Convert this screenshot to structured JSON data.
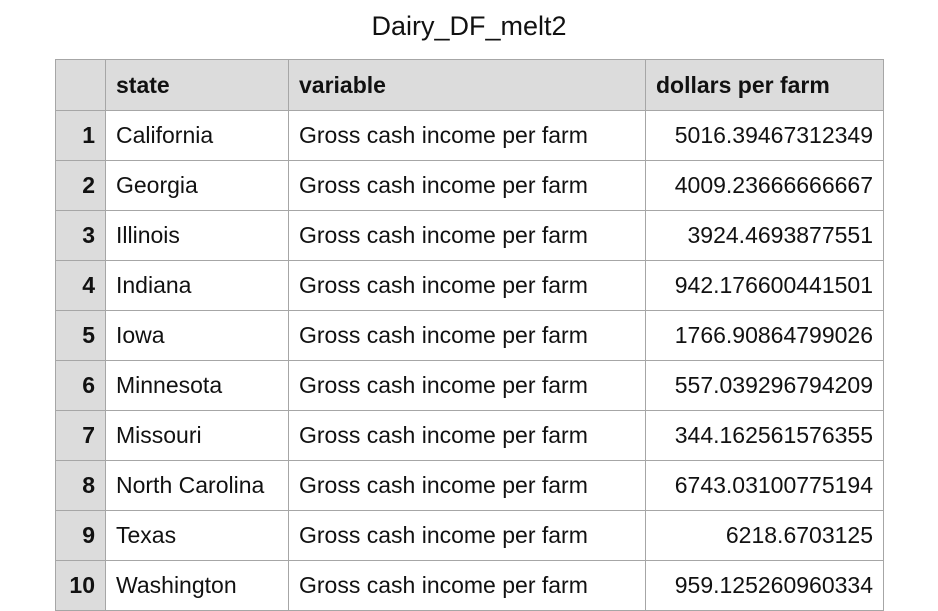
{
  "title": "Dairy_DF_melt2",
  "table": {
    "columns": [
      "",
      "state",
      "variable",
      "dollars per farm"
    ],
    "rows": [
      {
        "index": "1",
        "state": "California",
        "variable": "Gross cash income per farm",
        "value": "5016.39467312349"
      },
      {
        "index": "2",
        "state": "Georgia",
        "variable": "Gross cash income per farm",
        "value": "4009.23666666667"
      },
      {
        "index": "3",
        "state": "Illinois",
        "variable": "Gross cash income per farm",
        "value": "3924.4693877551"
      },
      {
        "index": "4",
        "state": "Indiana",
        "variable": "Gross cash income per farm",
        "value": "942.176600441501"
      },
      {
        "index": "5",
        "state": "Iowa",
        "variable": "Gross cash income per farm",
        "value": "1766.90864799026"
      },
      {
        "index": "6",
        "state": "Minnesota",
        "variable": "Gross cash income per farm",
        "value": "557.039296794209"
      },
      {
        "index": "7",
        "state": "Missouri",
        "variable": "Gross cash income per farm",
        "value": "344.162561576355"
      },
      {
        "index": "8",
        "state": "North Carolina",
        "variable": "Gross cash income per farm",
        "value": "6743.03100775194"
      },
      {
        "index": "9",
        "state": "Texas",
        "variable": "Gross cash income per farm",
        "value": "6218.6703125"
      },
      {
        "index": "10",
        "state": "Washington",
        "variable": "Gross cash income per farm",
        "value": "959.125260960334"
      }
    ]
  }
}
